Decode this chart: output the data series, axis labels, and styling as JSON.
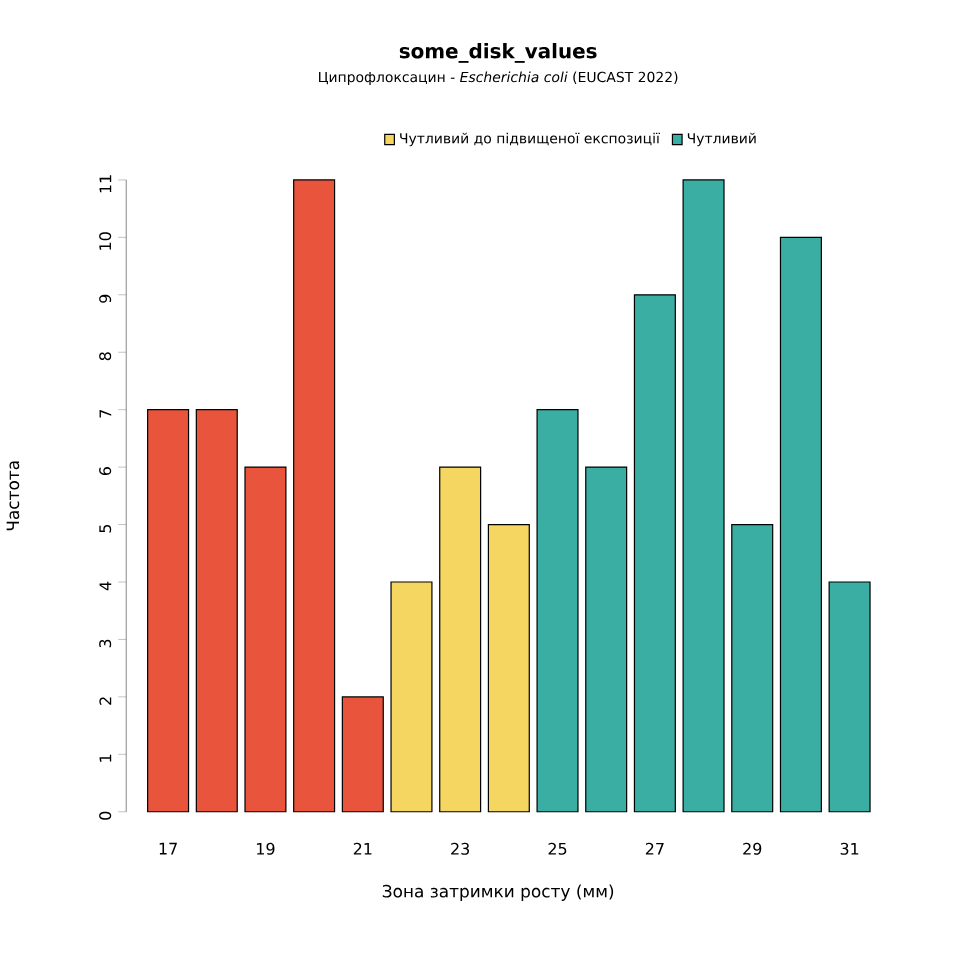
{
  "chart_data": {
    "type": "bar",
    "title": "some_disk_values",
    "subtitle": "Ципрофлоксацин - *Escherichia coli* (EUCAST 2022)",
    "xlabel": "Зона затримки росту (мм)",
    "ylabel": "Частота",
    "xlim": [
      16.14,
      31.42
    ],
    "ylim": [
      0,
      11
    ],
    "xticks": [
      17,
      19,
      21,
      23,
      25,
      27,
      29,
      31
    ],
    "yticks": [
      0,
      1,
      2,
      3,
      4,
      5,
      6,
      7,
      8,
      9,
      10,
      11
    ],
    "grid": false,
    "legend": "top",
    "series": [
      {
        "color": "#e9553c",
        "x": [
          17,
          18,
          19,
          20,
          21
        ],
        "values": [
          7,
          7,
          6,
          11,
          2
        ]
      },
      {
        "name": "Чутливий до підвищеної експозиції",
        "color": "#f4d660",
        "x": [
          22,
          23,
          24
        ],
        "values": [
          4,
          6,
          5
        ]
      },
      {
        "name": "Чутливий",
        "color": "#3aaea3",
        "x": [
          25,
          26,
          27,
          28,
          29,
          30,
          31
        ],
        "values": [
          7,
          6,
          9,
          11,
          5,
          10,
          4
        ]
      }
    ]
  }
}
